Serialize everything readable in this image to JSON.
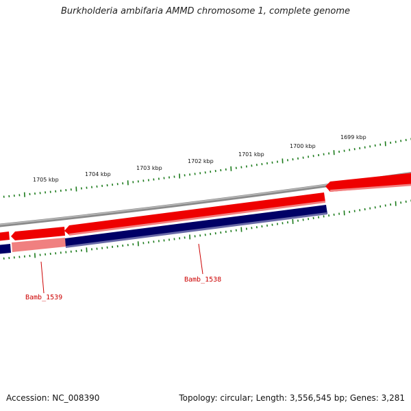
{
  "header": {
    "title": "Burkholderia ambifaria AMMD chromosome 1, complete genome"
  },
  "scale": {
    "labels": [
      "1705 kbp",
      "1704 kbp",
      "1703 kbp",
      "1702 kbp",
      "1701 kbp",
      "1700 kbp",
      "1699 kbp"
    ]
  },
  "genes": [
    {
      "name": "Bamb_1539",
      "strand": "forward"
    },
    {
      "name": "Bamb_1538",
      "strand": "reverse"
    }
  ],
  "footer": {
    "accession": "Accession: NC_008390",
    "summary": "Topology: circular; Length: 3,556,545 bp; Genes: 3,281"
  },
  "colors": {
    "forward_gene": "#ee0000",
    "reverse_gene": "#000066",
    "highlight_gene": "#f08080",
    "backbone": "#7f7f7f",
    "ticks": "#1a7a1a",
    "label": "#cc0000"
  }
}
